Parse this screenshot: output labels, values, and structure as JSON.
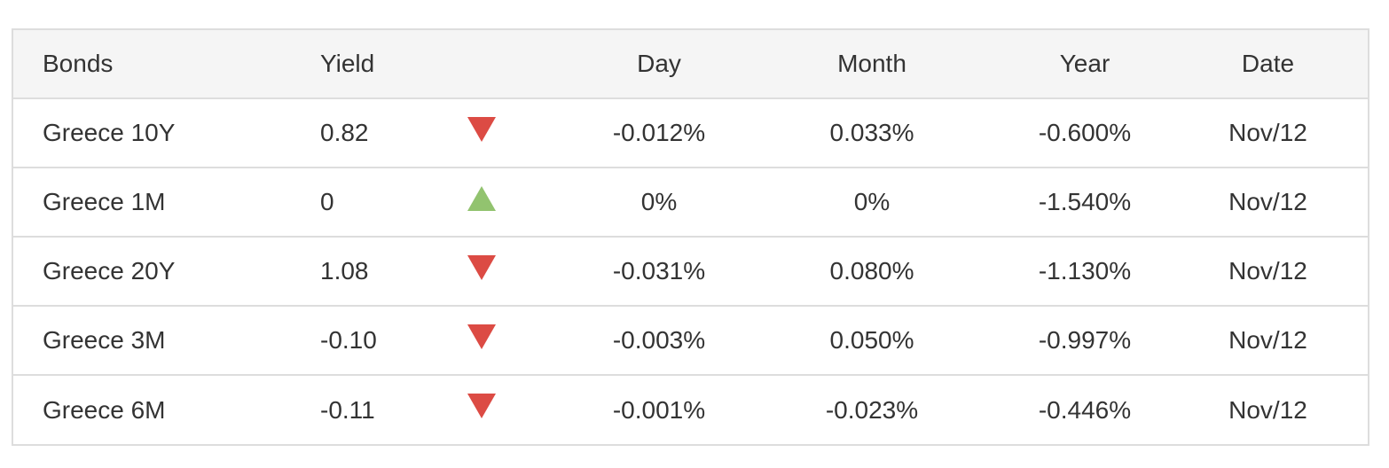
{
  "headers": {
    "bonds": "Bonds",
    "yield": "Yield",
    "trend": "",
    "day": "Day",
    "month": "Month",
    "year": "Year",
    "date": "Date"
  },
  "colors": {
    "down": "#dc4b44",
    "up": "#92c36f",
    "header_bg": "#f5f5f5",
    "border": "#dddddd"
  },
  "rows": [
    {
      "name": "Greece 10Y",
      "yield": "0.82",
      "direction": "down",
      "day": "-0.012%",
      "month": "0.033%",
      "year": "-0.600%",
      "date": "Nov/12"
    },
    {
      "name": "Greece 1M",
      "yield": "0",
      "direction": "up",
      "day": "0%",
      "month": "0%",
      "year": "-1.540%",
      "date": "Nov/12"
    },
    {
      "name": "Greece 20Y",
      "yield": "1.08",
      "direction": "down",
      "day": "-0.031%",
      "month": "0.080%",
      "year": "-1.130%",
      "date": "Nov/12"
    },
    {
      "name": "Greece 3M",
      "yield": "-0.10",
      "direction": "down",
      "day": "-0.003%",
      "month": "0.050%",
      "year": "-0.997%",
      "date": "Nov/12"
    },
    {
      "name": "Greece 6M",
      "yield": "-0.11",
      "direction": "down",
      "day": "-0.001%",
      "month": "-0.023%",
      "year": "-0.446%",
      "date": "Nov/12"
    }
  ]
}
